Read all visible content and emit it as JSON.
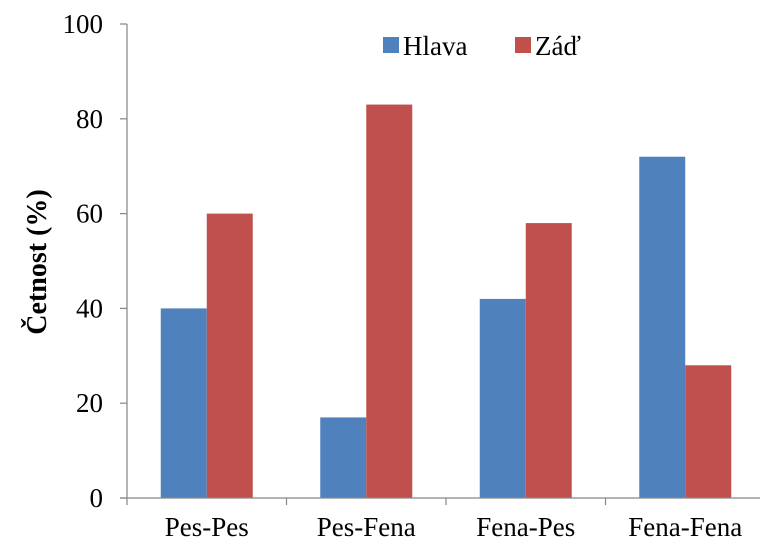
{
  "chart_data": {
    "type": "bar",
    "title": "",
    "xlabel": "",
    "ylabel": "Četnost (%)",
    "ylim": [
      0,
      100
    ],
    "yticks": [
      0,
      20,
      40,
      60,
      80,
      100
    ],
    "grid": false,
    "legend_position": "top-right",
    "categories": [
      "Pes-Pes",
      "Pes-Fena",
      "Fena-Pes",
      "Fena-Fena"
    ],
    "series": [
      {
        "name": "Hlava",
        "color": "#4F81BD",
        "values": [
          40,
          17,
          42,
          72
        ]
      },
      {
        "name": "Záď",
        "color": "#C0504D",
        "values": [
          60,
          83,
          58,
          28
        ]
      }
    ]
  }
}
